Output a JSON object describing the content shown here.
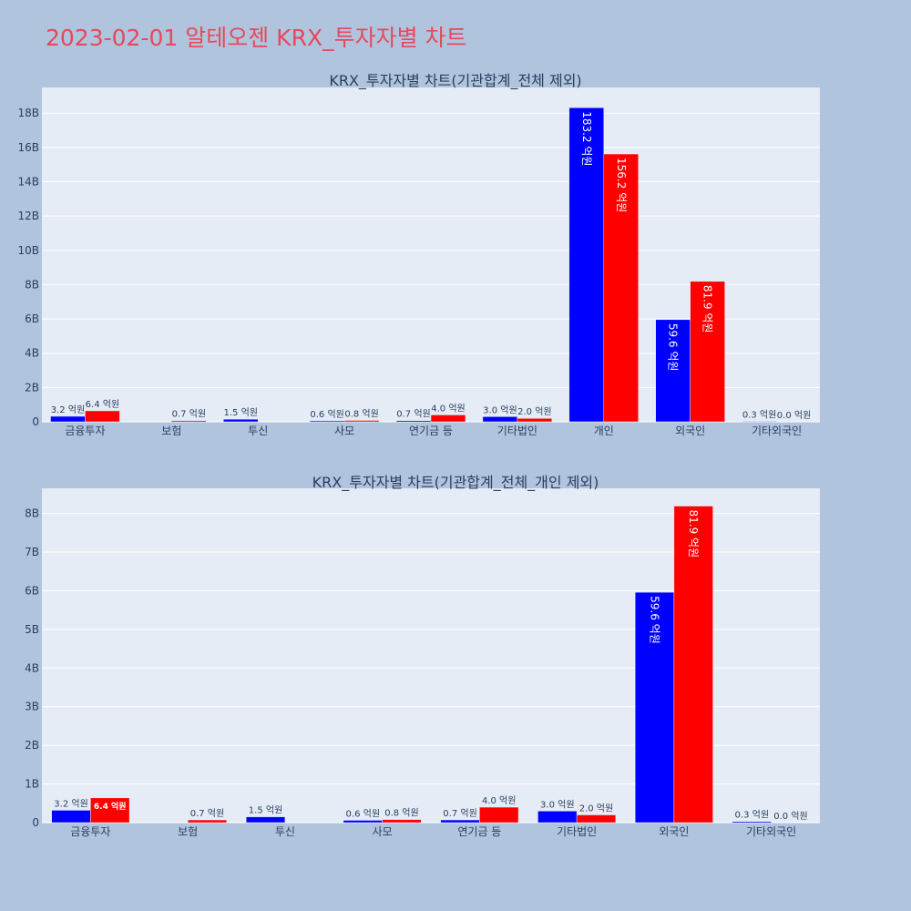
{
  "page_title": "2023-02-01 알테오젠 KRX_투자자별 차트",
  "colors": {
    "background": "#b0c4de",
    "plot_bg": "#e5ecf6",
    "buy": "#0000ff",
    "sell": "#ff0000",
    "title": "#e8485a"
  },
  "chart_data": [
    {
      "type": "bar",
      "title": "KRX_투자자별 차트(기관합계_전체 제외)",
      "categories": [
        "금융투자",
        "보험",
        "투신",
        "사모",
        "연기금 등",
        "기타법인",
        "개인",
        "외국인",
        "기타외국인"
      ],
      "series": [
        {
          "color": "#0000ff",
          "values": [
            0.32,
            0,
            0.15,
            0.06,
            0.07,
            0.3,
            18.32,
            5.96,
            0.03
          ],
          "labels": [
            "3.2 억원",
            "",
            "1.5 억원",
            "0.6 억원",
            "0.7 억원",
            "3.0 억원",
            "183.2 억원",
            "59.6 억원",
            "0.3 억원"
          ]
        },
        {
          "color": "#ff0000",
          "values": [
            0.64,
            0.07,
            0,
            0.08,
            0.4,
            0.2,
            15.62,
            8.19,
            0.0
          ],
          "labels": [
            "6.4 억원",
            "0.7 억원",
            "",
            "0.8 억원",
            "4.0 억원",
            "2.0 억원",
            "156.2 억원",
            "81.9 억원",
            "0.0 억원"
          ]
        }
      ],
      "ylim": [
        0,
        19.5
      ],
      "yticks": [
        0,
        2,
        4,
        6,
        8,
        10,
        12,
        14,
        16,
        18
      ],
      "ytick_labels": [
        "0",
        "2B",
        "4B",
        "6B",
        "8B",
        "10B",
        "12B",
        "14B",
        "16B",
        "18B"
      ],
      "grid": true
    },
    {
      "type": "bar",
      "title": "KRX_투자자별 차트(기관합계_전체_개인 제외)",
      "categories": [
        "금융투자",
        "보험",
        "투신",
        "사모",
        "연기금 등",
        "기타법인",
        "외국인",
        "기타외국인"
      ],
      "series": [
        {
          "color": "#0000ff",
          "values": [
            0.32,
            0,
            0.15,
            0.06,
            0.07,
            0.3,
            5.96,
            0.03
          ],
          "labels": [
            "3.2 억원",
            "",
            "1.5 억원",
            "0.6 억원",
            "0.7 억원",
            "3.0 억원",
            "59.6 억원",
            "0.3 억원"
          ]
        },
        {
          "color": "#ff0000",
          "values": [
            0.64,
            0.07,
            0,
            0.08,
            0.4,
            0.2,
            8.19,
            0.0
          ],
          "labels": [
            "6.4 억원",
            "0.7 억원",
            "",
            "0.8 억원",
            "4.0 억원",
            "2.0 억원",
            "81.9 억원",
            "0.0 억원"
          ]
        }
      ],
      "ylim": [
        0,
        8.65
      ],
      "yticks": [
        0,
        1,
        2,
        3,
        4,
        5,
        6,
        7,
        8
      ],
      "ytick_labels": [
        "0",
        "1B",
        "2B",
        "3B",
        "4B",
        "5B",
        "6B",
        "7B",
        "8B"
      ],
      "grid": true
    }
  ]
}
